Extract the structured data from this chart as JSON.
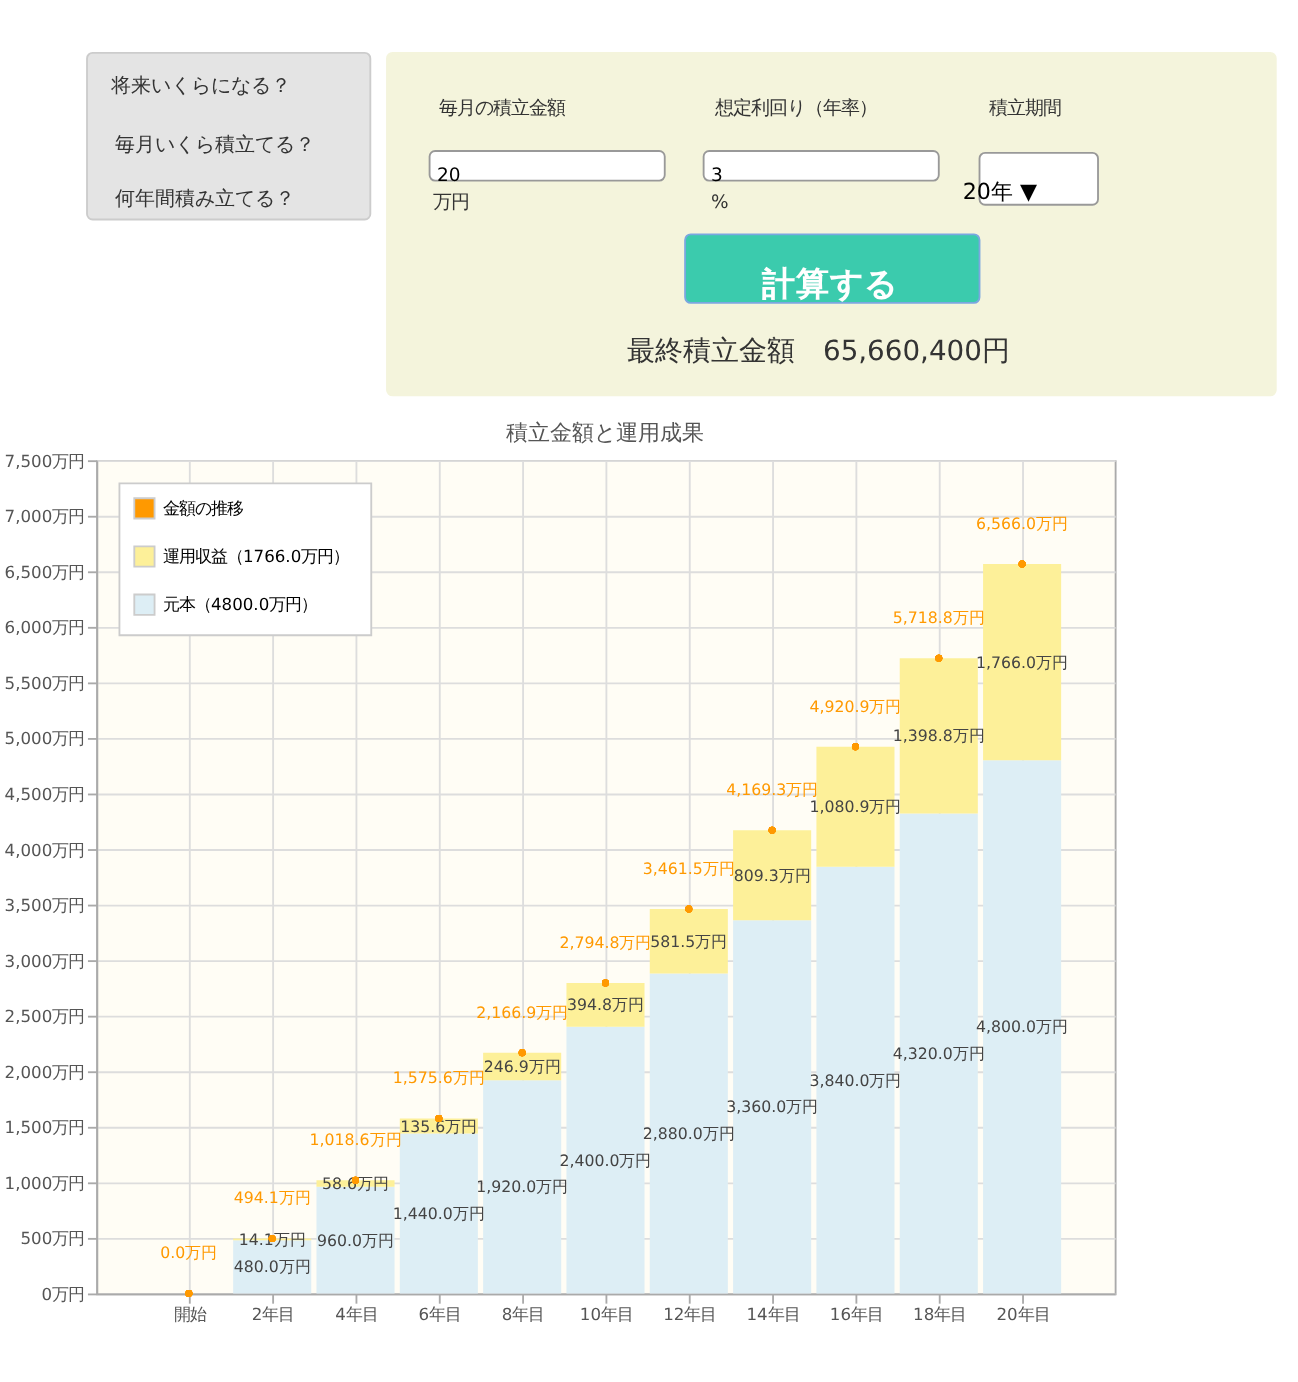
{
  "chart_data": {
    "type": "bar",
    "title": "積立金額と運用成果",
    "stacked": true,
    "categories": [
      "開始",
      "2年目",
      "4年目",
      "6年目",
      "8年目",
      "10年目",
      "12年目",
      "14年目",
      "16年目",
      "18年目",
      "20年目"
    ],
    "series": [
      {
        "name": "元本（4800.0万円）",
        "color": "#ddeef5",
        "values": [
          0,
          480,
          960,
          1440,
          1920,
          2400,
          2880,
          3360,
          3840,
          4320,
          4800
        ],
        "value_labels": [
          null,
          "480.0万円",
          "960.0万円",
          "1,440.0万円",
          "1,920.0万円",
          "2,400.0万円",
          "2,880.0万円",
          "3,360.0万円",
          "3,840.0万円",
          "4,320.0万円",
          "4,800.0万円"
        ]
      },
      {
        "name": "運用収益（1766.0万円）",
        "color": "#fdf099",
        "values": [
          0,
          14.1,
          58.6,
          135.6,
          246.9,
          394.8,
          581.5,
          809.3,
          1080.9,
          1398.8,
          1766.0
        ],
        "value_labels": [
          null,
          "14.1万円",
          "58.6万円",
          "135.6万円",
          "246.9万円",
          "394.8万円",
          "581.5万円",
          "809.3万円",
          "1,080.9万円",
          "1,398.8万円",
          "1,766.0万円"
        ]
      },
      {
        "name": "金額の推移",
        "type": "scatter",
        "marker": "circle",
        "color": "#ff9900",
        "values": [
          0,
          494.1,
          1018.6,
          1575.6,
          2166.9,
          2794.8,
          3461.5,
          4169.3,
          4920.9,
          5718.8,
          6566.0
        ],
        "value_labels": [
          "0.0万円",
          "494.1万円",
          "1,018.6万円",
          "1,575.6万円",
          "2,166.9万円",
          "2,794.8万円",
          "3,461.5万円",
          "4,169.3万円",
          "4,920.9万円",
          "5,718.8万円",
          "6,566.0万円"
        ]
      }
    ],
    "ylim": [
      0,
      7500
    ],
    "yticks": [
      {
        "value": 0,
        "label": "0万円"
      },
      {
        "value": 500,
        "label": "500万円"
      },
      {
        "value": 1000,
        "label": "1,000万円"
      },
      {
        "value": 1500,
        "label": "1,500万円"
      },
      {
        "value": 2000,
        "label": "2,000万円"
      },
      {
        "value": 2500,
        "label": "2,500万円"
      },
      {
        "value": 3000,
        "label": "3,000万円"
      },
      {
        "value": 3500,
        "label": "3,500万円"
      },
      {
        "value": 4000,
        "label": "4,000万円"
      },
      {
        "value": 4500,
        "label": "4,500万円"
      },
      {
        "value": 5000,
        "label": "5,000万円"
      },
      {
        "value": 5500,
        "label": "5,500万円"
      },
      {
        "value": 6000,
        "label": "6,000万円"
      },
      {
        "value": 6500,
        "label": "6,500万円"
      },
      {
        "value": 7000,
        "label": "7,000万円"
      },
      {
        "value": 7500,
        "label": "7,500万円"
      }
    ],
    "grid": true,
    "legend": "top left",
    "annotations": [
      "将来いくらになる？",
      "毎月いくら積立てる？",
      "何年間積み立てる？",
      "毎月の積立金額",
      "想定利回り（年率）",
      "積立期間",
      "20",
      "万円",
      "3",
      "%",
      "20年 ▼",
      "計算する",
      "最終積立金額　65,660,400円"
    ]
  }
}
